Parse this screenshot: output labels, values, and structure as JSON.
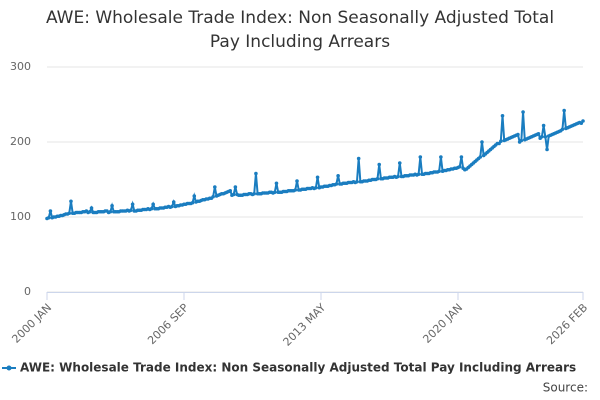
{
  "chart_data": {
    "type": "line",
    "title": "AWE: Wholesale Trade Index: Non Seasonally Adjusted Total Pay Including Arrears",
    "source": "Source:",
    "categories": [
      "2000 JAN",
      null,
      null,
      null,
      null,
      null,
      null,
      null,
      null,
      null,
      null,
      null,
      null,
      null,
      null,
      null,
      null,
      null,
      null,
      null,
      null,
      null,
      null,
      null,
      null,
      null,
      null,
      null,
      null,
      null,
      null,
      null,
      null,
      null,
      null,
      null,
      null,
      null,
      null,
      null,
      null,
      null,
      null,
      null,
      null,
      null,
      null,
      null,
      null,
      null,
      null,
      null,
      null,
      null,
      null,
      null,
      null,
      null,
      null,
      null,
      null,
      null,
      null,
      null,
      null,
      null,
      null,
      null,
      null,
      null,
      null,
      null,
      null,
      null,
      null,
      null,
      null,
      null,
      null,
      null,
      "2006 SEP",
      null,
      null,
      null,
      null,
      null,
      null,
      null,
      null,
      null,
      null,
      null,
      null,
      null,
      null,
      null,
      null,
      null,
      null,
      null,
      null,
      null,
      null,
      null,
      null,
      null,
      null,
      null,
      null,
      null,
      null,
      null,
      null,
      null,
      null,
      null,
      null,
      null,
      null,
      null,
      null,
      null,
      null,
      null,
      null,
      null,
      null,
      null,
      null,
      null,
      null,
      null,
      null,
      null,
      null,
      null,
      null,
      null,
      null,
      null,
      null,
      null,
      null,
      null,
      null,
      null,
      null,
      null,
      null,
      null,
      null,
      null,
      null,
      null,
      null,
      null,
      null,
      null,
      null,
      null,
      "2013 MAY",
      null,
      null,
      null,
      null,
      null,
      null,
      null,
      null,
      null,
      null,
      null,
      null,
      null,
      null,
      null,
      null,
      null,
      null,
      null,
      null,
      null,
      null,
      null,
      null,
      null,
      null,
      null,
      null,
      null,
      null,
      null,
      null,
      null,
      null,
      null,
      null,
      null,
      null,
      null,
      null,
      null,
      null,
      null,
      null,
      null,
      null,
      null,
      null,
      null,
      null,
      null,
      null,
      null,
      null,
      null,
      null,
      null,
      null,
      null,
      null,
      null,
      null,
      null,
      null,
      null,
      null,
      null,
      null,
      null,
      null,
      null,
      null,
      null,
      null,
      null,
      null,
      null,
      null,
      null,
      "2020 JAN",
      null,
      null,
      null,
      null,
      null,
      null,
      null,
      null,
      null,
      null,
      null,
      null,
      null,
      null,
      null,
      null,
      null,
      null,
      null,
      null,
      null,
      null,
      null,
      null,
      null,
      null,
      null,
      null,
      null,
      null,
      null,
      null,
      null,
      null,
      null,
      null,
      null,
      null,
      null,
      null,
      null,
      null,
      null,
      null,
      null,
      null,
      null,
      null,
      null,
      null,
      null,
      null,
      null,
      null,
      null,
      null,
      null,
      null,
      null,
      null,
      null,
      null,
      null,
      null,
      null,
      null,
      null,
      null,
      null,
      null,
      null,
      null,
      "2026 FEB"
    ],
    "series": [
      {
        "name": "AWE: Wholesale Trade Index: Non Seasonally Adjusted Total Pay Including Arrears",
        "color": "#1a7dc0",
        "values": [
          98,
          99,
          108,
          99,
          100,
          100,
          101,
          101,
          102,
          102,
          103,
          104,
          104,
          105,
          121,
          105,
          105,
          106,
          106,
          106,
          106,
          107,
          107,
          108,
          106,
          107,
          112,
          106,
          106,
          106,
          107,
          107,
          107,
          107,
          108,
          108,
          106,
          107,
          115,
          107,
          107,
          107,
          107,
          108,
          108,
          108,
          108,
          109,
          108,
          109,
          117,
          108,
          108,
          109,
          109,
          109,
          110,
          110,
          110,
          111,
          110,
          111,
          117,
          111,
          111,
          111,
          112,
          112,
          112,
          113,
          113,
          114,
          113,
          114,
          120,
          114,
          115,
          115,
          116,
          116,
          117,
          117,
          118,
          118,
          118,
          119,
          128,
          120,
          121,
          121,
          122,
          123,
          123,
          124,
          124,
          125,
          125,
          127,
          140,
          128,
          129,
          130,
          131,
          131,
          132,
          133,
          134,
          135,
          129,
          130,
          140,
          130,
          129,
          129,
          129,
          130,
          130,
          130,
          131,
          131,
          130,
          131,
          158,
          131,
          131,
          131,
          132,
          132,
          132,
          132,
          133,
          133,
          132,
          133,
          145,
          133,
          133,
          133,
          134,
          134,
          134,
          135,
          135,
          135,
          135,
          136,
          148,
          136,
          136,
          137,
          137,
          137,
          138,
          138,
          138,
          139,
          138,
          139,
          153,
          139,
          140,
          140,
          141,
          141,
          141,
          142,
          142,
          143,
          143,
          144,
          155,
          144,
          144,
          145,
          145,
          145,
          146,
          146,
          146,
          147,
          146,
          147,
          178,
          147,
          147,
          148,
          148,
          148,
          149,
          149,
          150,
          150,
          150,
          151,
          170,
          151,
          151,
          152,
          152,
          152,
          153,
          153,
          153,
          154,
          153,
          154,
          172,
          154,
          154,
          155,
          155,
          155,
          156,
          156,
          156,
          157,
          156,
          157,
          180,
          157,
          157,
          158,
          158,
          158,
          159,
          159,
          160,
          160,
          160,
          161,
          180,
          161,
          162,
          162,
          163,
          163,
          164,
          164,
          165,
          165,
          166,
          167,
          180,
          165,
          163,
          164,
          166,
          168,
          170,
          172,
          174,
          176,
          178,
          180,
          200,
          182,
          184,
          186,
          188,
          190,
          192,
          194,
          196,
          198,
          198,
          201,
          235,
          202,
          203,
          204,
          205,
          206,
          207,
          208,
          209,
          210,
          200,
          202,
          240,
          203,
          204,
          205,
          206,
          207,
          208,
          209,
          210,
          211,
          205,
          207,
          222,
          207,
          190,
          208,
          209,
          210,
          211,
          212,
          213,
          214,
          215,
          217,
          242,
          218,
          219,
          220,
          221,
          222,
          223,
          224,
          225,
          226,
          225,
          228
        ]
      }
    ],
    "ylim": [
      0,
      300
    ],
    "yticks": [
      0,
      100,
      200,
      300
    ],
    "grid": true
  }
}
